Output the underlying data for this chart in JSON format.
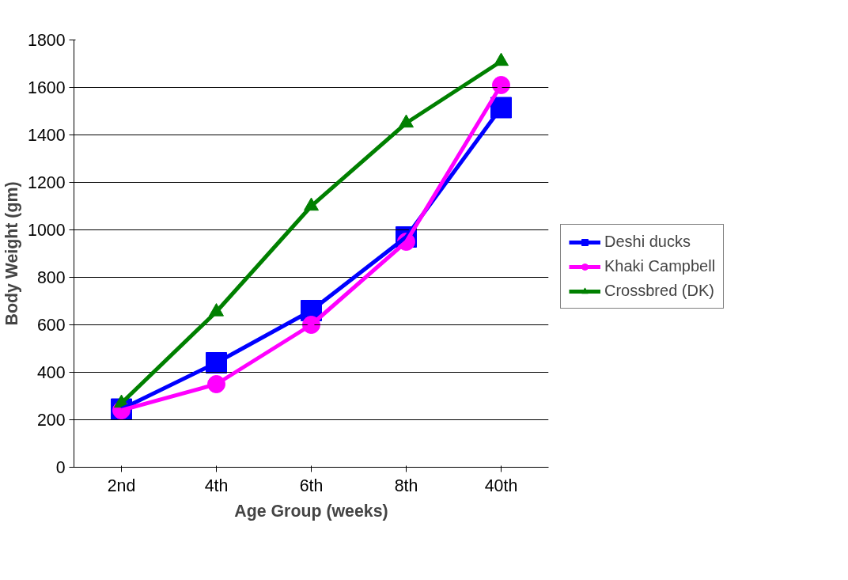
{
  "chart_data": {
    "type": "line",
    "xlabel": "Age Group (weeks)",
    "ylabel": "Body Weight (gm)",
    "categories": [
      "2nd",
      "4th",
      "6th",
      "8th",
      "40th"
    ],
    "series": [
      {
        "name": "Deshi ducks",
        "color": "#0000ff",
        "marker": "square",
        "values": [
          245,
          440,
          660,
          970,
          1515
        ]
      },
      {
        "name": "Khaki Campbell",
        "color": "#ff00ff",
        "marker": "circle",
        "values": [
          240,
          350,
          600,
          950,
          1610
        ]
      },
      {
        "name": "Crossbred (DK)",
        "color": "#008000",
        "marker": "triangle",
        "values": [
          270,
          655,
          1100,
          1450,
          1710
        ]
      }
    ],
    "ylim": [
      0,
      1800
    ],
    "yticks": [
      0,
      200,
      400,
      600,
      800,
      1000,
      1200,
      1400,
      1600,
      1800
    ],
    "grid": "y",
    "legend": "right",
    "line_style": "solid"
  }
}
